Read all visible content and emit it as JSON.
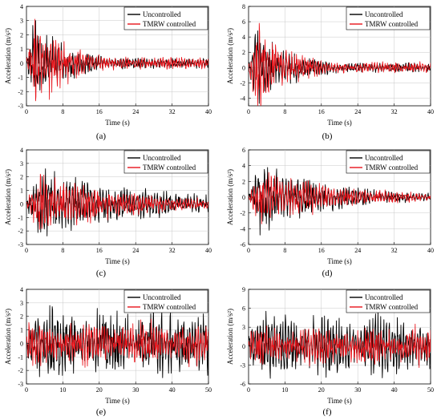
{
  "chart_data": [
    {
      "panel": "(a)",
      "type": "line",
      "xlabel": "Time (s)",
      "ylabel": "Acceleration (m/s²)",
      "xlim": [
        0,
        40
      ],
      "ylim": [
        -3,
        4
      ],
      "xticks": [
        0,
        8,
        16,
        24,
        32,
        40
      ],
      "yticks": [
        -3,
        -2,
        -1,
        0,
        1,
        2,
        3,
        4
      ],
      "grid": true,
      "legend_position": "top-right",
      "series": [
        {
          "name": "Uncontrolled",
          "color": "#000000",
          "peak": 3.0,
          "decay": 0.12,
          "onset": 1.5,
          "freq": 1.6
        },
        {
          "name": "TMRW controlled",
          "color": "#e8141b",
          "peak": 3.1,
          "decay": 0.13,
          "onset": 1.5,
          "freq": 1.7
        }
      ]
    },
    {
      "panel": "(b)",
      "type": "line",
      "xlabel": "Time (s)",
      "ylabel": "Acceleration (m/s²)",
      "xlim": [
        0,
        40
      ],
      "ylim": [
        -5,
        8
      ],
      "xticks": [
        0,
        8,
        16,
        24,
        32,
        40
      ],
      "yticks": [
        -4,
        -2,
        0,
        2,
        4,
        6,
        8
      ],
      "grid": true,
      "legend_position": "top-right",
      "series": [
        {
          "name": "Uncontrolled",
          "color": "#000000",
          "peak": 4.8,
          "decay": 0.11,
          "onset": 1.5,
          "freq": 1.6
        },
        {
          "name": "TMRW controlled",
          "color": "#e8141b",
          "peak": 5.8,
          "decay": 0.13,
          "onset": 1.8,
          "freq": 1.7
        }
      ]
    },
    {
      "panel": "(c)",
      "type": "line",
      "xlabel": "Time (s)",
      "ylabel": "Acceleration (m/s²)",
      "xlim": [
        0,
        40
      ],
      "ylim": [
        -3,
        4
      ],
      "xticks": [
        0,
        8,
        16,
        24,
        32,
        40
      ],
      "yticks": [
        -3,
        -2,
        -1,
        0,
        1,
        2,
        3,
        4
      ],
      "grid": true,
      "legend_position": "top-right",
      "series": [
        {
          "name": "Uncontrolled",
          "color": "#000000",
          "peak": 2.6,
          "decay": 0.04,
          "onset": 3.0,
          "freq": 1.5
        },
        {
          "name": "TMRW controlled",
          "color": "#e8141b",
          "peak": 2.2,
          "decay": 0.05,
          "onset": 3.0,
          "freq": 1.6
        }
      ]
    },
    {
      "panel": "(d)",
      "type": "line",
      "xlabel": "Time (s)",
      "ylabel": "Acceleration (m/s²)",
      "xlim": [
        0,
        40
      ],
      "ylim": [
        -6,
        6
      ],
      "xticks": [
        0,
        8,
        16,
        24,
        32,
        40
      ],
      "yticks": [
        -6,
        -4,
        -2,
        0,
        2,
        4,
        6
      ],
      "grid": true,
      "legend_position": "top-right",
      "series": [
        {
          "name": "Uncontrolled",
          "color": "#000000",
          "peak": 4.8,
          "decay": 0.06,
          "onset": 2.5,
          "freq": 1.5
        },
        {
          "name": "TMRW controlled",
          "color": "#e8141b",
          "peak": 3.4,
          "decay": 0.05,
          "onset": 2.5,
          "freq": 1.6
        }
      ]
    },
    {
      "panel": "(e)",
      "type": "line",
      "xlabel": "Time (s)",
      "ylabel": "Acceleration (m/s²)",
      "xlim": [
        0,
        50
      ],
      "ylim": [
        -3,
        4
      ],
      "xticks": [
        0,
        10,
        20,
        30,
        40,
        50
      ],
      "yticks": [
        -3,
        -2,
        -1,
        0,
        1,
        2,
        3,
        4
      ],
      "grid": true,
      "legend_position": "top-right",
      "series": [
        {
          "name": "Uncontrolled",
          "color": "#000000",
          "peak": 2.8,
          "decay": 0.0,
          "onset": 0.5,
          "freq": 1.3
        },
        {
          "name": "TMRW controlled",
          "color": "#e8141b",
          "peak": 1.8,
          "decay": 0.0,
          "onset": 0.5,
          "freq": 1.4
        }
      ]
    },
    {
      "panel": "(f)",
      "type": "line",
      "xlabel": "Time (s)",
      "ylabel": "Acceleration (m/s²)",
      "xlim": [
        0,
        50
      ],
      "ylim": [
        -6,
        9
      ],
      "xticks": [
        0,
        10,
        20,
        30,
        40,
        50
      ],
      "yticks": [
        -6,
        -3,
        0,
        3,
        6,
        9
      ],
      "grid": true,
      "legend_position": "top-right",
      "series": [
        {
          "name": "Uncontrolled",
          "color": "#000000",
          "peak": 5.6,
          "decay": 0.0,
          "onset": 0.5,
          "freq": 1.3
        },
        {
          "name": "TMRW controlled",
          "color": "#e8141b",
          "peak": 3.5,
          "decay": 0.0,
          "onset": 0.5,
          "freq": 1.4
        }
      ]
    }
  ]
}
